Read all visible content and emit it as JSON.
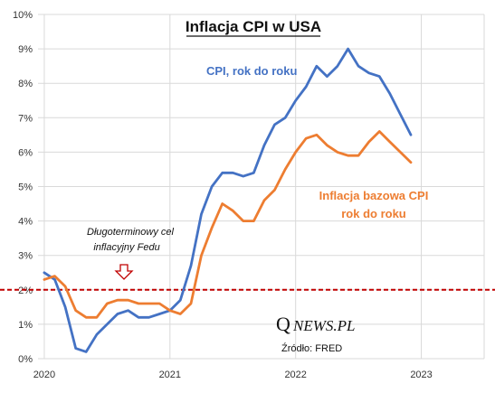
{
  "chart_data": {
    "type": "line",
    "title": "Inflacja CPI w USA",
    "ylim": [
      0,
      10
    ],
    "y_ticks": [
      "0%",
      "1%",
      "2%",
      "3%",
      "4%",
      "5%",
      "6%",
      "7%",
      "8%",
      "9%",
      "10%"
    ],
    "x_ticks": [
      "2020",
      "2021",
      "2022",
      "2023"
    ],
    "x_tick_values": [
      2020,
      2021,
      2022,
      2023
    ],
    "xlim": [
      2019.95,
      2023.5
    ],
    "grid": true,
    "series": [
      {
        "name": "CPI, rok do roku",
        "color": "#4472C4",
        "x": [
          2020.0,
          2020.083,
          2020.167,
          2020.25,
          2020.333,
          2020.417,
          2020.5,
          2020.583,
          2020.667,
          2020.75,
          2020.833,
          2020.917,
          2021.0,
          2021.083,
          2021.167,
          2021.25,
          2021.333,
          2021.417,
          2021.5,
          2021.583,
          2021.667,
          2021.75,
          2021.833,
          2021.917,
          2022.0,
          2022.083,
          2022.167,
          2022.25,
          2022.333,
          2022.417,
          2022.5,
          2022.583,
          2022.667,
          2022.75,
          2022.833,
          2022.917
        ],
        "y": [
          2.5,
          2.3,
          1.5,
          0.3,
          0.2,
          0.7,
          1.0,
          1.3,
          1.4,
          1.2,
          1.2,
          1.3,
          1.4,
          1.7,
          2.7,
          4.2,
          5.0,
          5.4,
          5.4,
          5.3,
          5.4,
          6.2,
          6.8,
          7.0,
          7.5,
          7.9,
          8.5,
          8.2,
          8.5,
          9.0,
          8.5,
          8.3,
          8.2,
          7.7,
          7.1,
          6.5
        ]
      },
      {
        "name": "Inflacja bazowa CPI\nrok do roku",
        "color": "#ED7D31",
        "x": [
          2020.0,
          2020.083,
          2020.167,
          2020.25,
          2020.333,
          2020.417,
          2020.5,
          2020.583,
          2020.667,
          2020.75,
          2020.833,
          2020.917,
          2021.0,
          2021.083,
          2021.167,
          2021.25,
          2021.333,
          2021.417,
          2021.5,
          2021.583,
          2021.667,
          2021.75,
          2021.833,
          2021.917,
          2022.0,
          2022.083,
          2022.167,
          2022.25,
          2022.333,
          2022.417,
          2022.5,
          2022.583,
          2022.667,
          2022.75,
          2022.833,
          2022.917
        ],
        "y": [
          2.3,
          2.4,
          2.1,
          1.4,
          1.2,
          1.2,
          1.6,
          1.7,
          1.7,
          1.6,
          1.6,
          1.6,
          1.4,
          1.3,
          1.6,
          3.0,
          3.8,
          4.5,
          4.3,
          4.0,
          4.0,
          4.6,
          4.9,
          5.5,
          6.0,
          6.4,
          6.5,
          6.2,
          6.0,
          5.9,
          5.9,
          6.3,
          6.6,
          6.3,
          6.0,
          5.7
        ]
      }
    ],
    "reference_line": {
      "y": 2.0,
      "color": "#C00000",
      "label": "Długoterminowy cel\ninflacyjny Fedu"
    },
    "annotations": {
      "cpi_label": "CPI, rok do roku",
      "core_label_line1": "Inflacja bazowa CPI",
      "core_label_line2": "rok do roku",
      "fed_note_line1": "Długoterminowy cel",
      "fed_note_line2": "inflacyjny Fedu",
      "logo_q": "Q",
      "logo_rest": "NEWS.PL",
      "source": "Źródło: FRED"
    }
  }
}
